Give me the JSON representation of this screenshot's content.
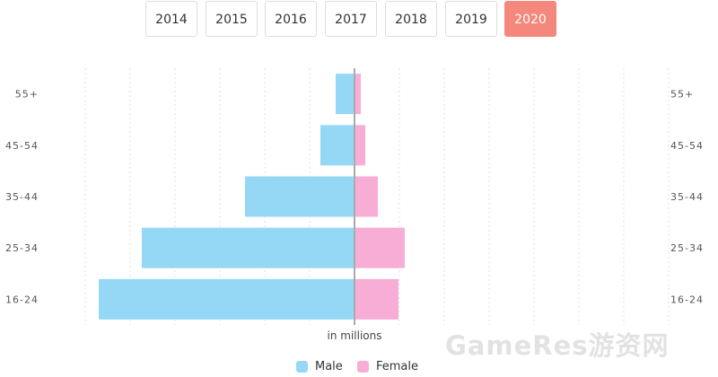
{
  "year_tabs": [
    {
      "label": "2014",
      "active": false
    },
    {
      "label": "2015",
      "active": false
    },
    {
      "label": "2016",
      "active": false
    },
    {
      "label": "2017",
      "active": false
    },
    {
      "label": "2018",
      "active": false
    },
    {
      "label": "2019",
      "active": false
    },
    {
      "label": "2020",
      "active": true
    }
  ],
  "colors": {
    "male": "#95d8f6",
    "female": "#f8add6",
    "active_tab": "#f5887c"
  },
  "chart_data": {
    "type": "bar",
    "orientation": "horizontal",
    "layout": "population-pyramid",
    "categories": [
      "55+",
      "45-54",
      "35-44",
      "25-34",
      "16-24"
    ],
    "series": [
      {
        "name": "Male",
        "values": [
          -21,
          -38,
          -122,
          -237,
          -285
        ]
      },
      {
        "name": "Female",
        "values": [
          7,
          12,
          26,
          56,
          49
        ]
      }
    ],
    "xlabel": "in millions",
    "xlim": [
      -335,
      400
    ],
    "grid": true,
    "legend": "bottom-center"
  },
  "legend": {
    "male_label": "Male",
    "female_label": "Female"
  },
  "watermark": "GameRes游资网"
}
